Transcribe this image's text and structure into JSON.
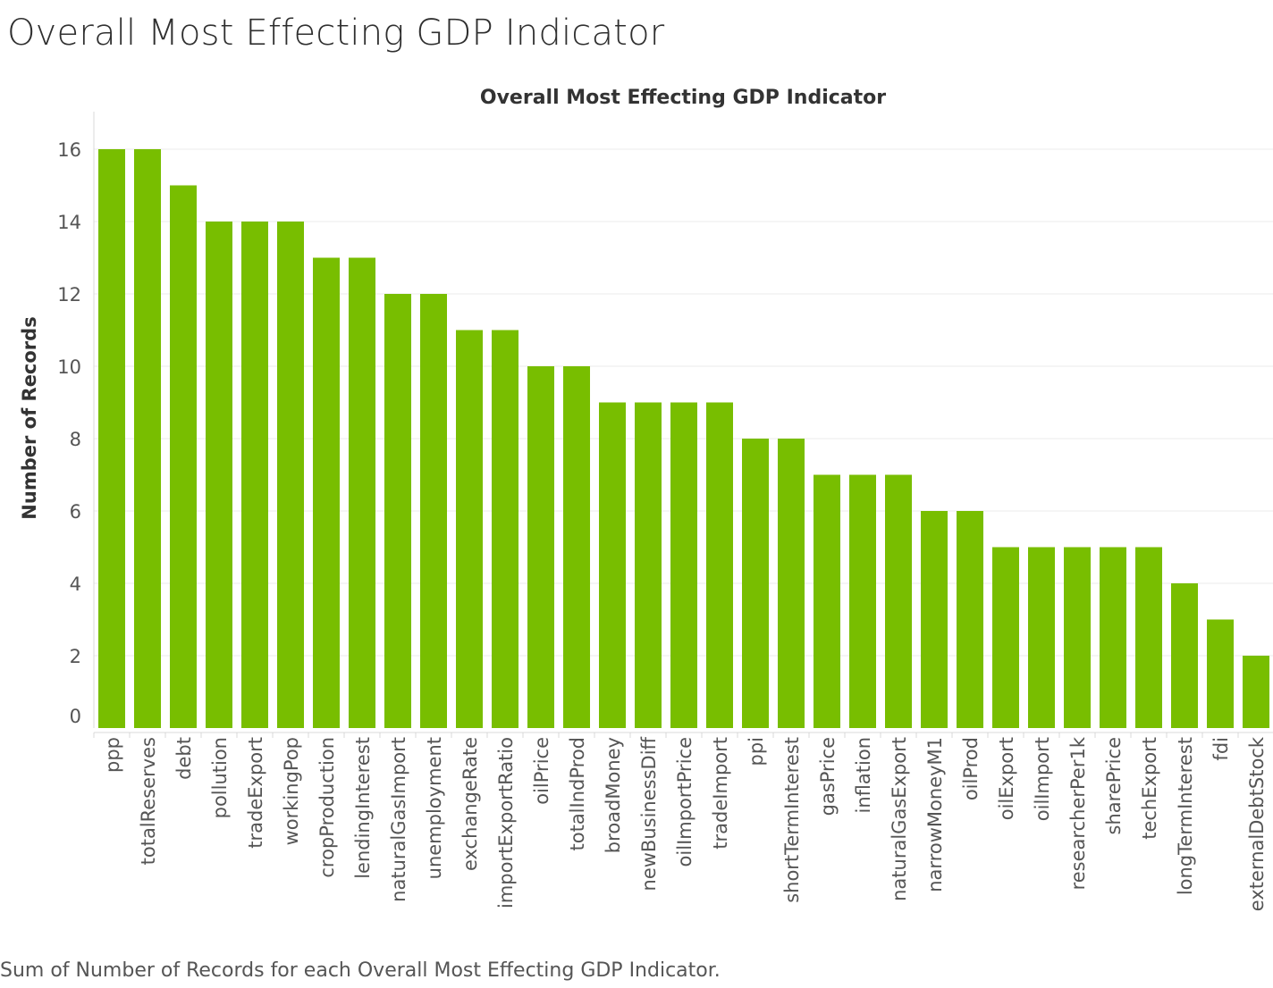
{
  "page": {
    "title": "Overall Most Effecting GDP Indicator",
    "caption": "Sum of Number of Records for each Overall Most Effecting GDP Indicator."
  },
  "colors": {
    "bar": "#78be00"
  },
  "chart_data": {
    "type": "bar",
    "title": "Overall Most Effecting GDP Indicator",
    "xlabel": "",
    "ylabel": "Number of Records",
    "ylim": [
      0,
      16
    ],
    "yticks": [
      0,
      2,
      4,
      6,
      8,
      10,
      12,
      14,
      16
    ],
    "grid": true,
    "categories": [
      "ppp",
      "totalReserves",
      "debt",
      "pollution",
      "tradeExport",
      "workingPop",
      "cropProduction",
      "lendingInterest",
      "naturalGasImport",
      "unemployment",
      "exchangeRate",
      "importExportRatio",
      "oilPrice",
      "totalIndProd",
      "broadMoney",
      "newBusinessDiff",
      "oilImportPrice",
      "tradeImport",
      "ppi",
      "shortTermInterest",
      "gasPrice",
      "inflation",
      "naturalGasExport",
      "narrowMoneyM1",
      "oilProd",
      "oilExport",
      "oilImport",
      "researcherPer1k",
      "sharePrice",
      "techExport",
      "longTermInterest",
      "fdi",
      "externalDebtStock"
    ],
    "values": [
      16,
      16,
      15,
      14,
      14,
      14,
      13,
      13,
      12,
      12,
      11,
      11,
      10,
      10,
      9,
      9,
      9,
      9,
      8,
      8,
      7,
      7,
      7,
      6,
      6,
      5,
      5,
      5,
      5,
      5,
      4,
      3,
      2
    ]
  }
}
